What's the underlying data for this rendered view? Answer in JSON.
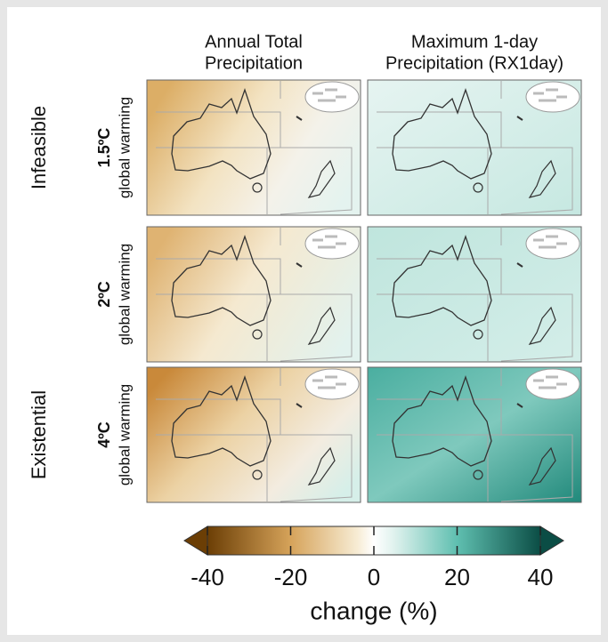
{
  "columns": [
    {
      "line1": "Annual Total",
      "line2": "Precipitation"
    },
    {
      "line1": "Maximum 1-day",
      "line2": "Precipitation (RX1day)"
    }
  ],
  "groups": [
    "Infeasible",
    "Existential"
  ],
  "rows": [
    {
      "warming": "1.5ºC",
      "label": "global warming"
    },
    {
      "warming": "2ºC",
      "label": "global warming"
    },
    {
      "warming": "4ºC",
      "label": "global warming"
    }
  ],
  "colorbar": {
    "lim": [
      -40,
      40
    ],
    "ticks": [
      -40,
      -20,
      0,
      20,
      40
    ],
    "label": "change (%)"
  }
}
